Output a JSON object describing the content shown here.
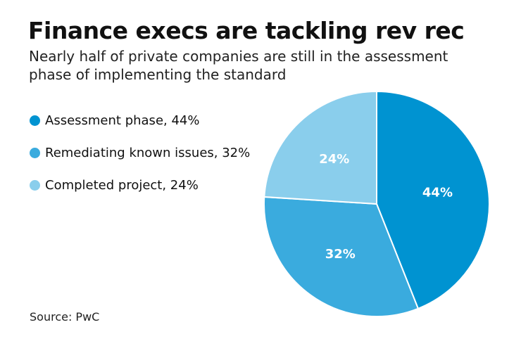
{
  "chart_data": {
    "type": "pie",
    "title": "Finance execs are tackling rev rec",
    "subtitle": "Nearly half of private companies are still in the assessment phase of implementing the standard",
    "categories": [
      "Assessment phase",
      "Remediating known issues",
      "Completed project"
    ],
    "values": [
      44,
      32,
      24
    ],
    "data_labels": [
      "44%",
      "32%",
      "24%"
    ],
    "legend_labels": [
      "Assessment phase, 44%",
      "Remediating known issues, 32%",
      "Completed project, 24%"
    ],
    "colors": [
      "#0093D1",
      "#3AABDE",
      "#8ACEEC"
    ],
    "legend_position": "left",
    "source": "Source: PwC"
  }
}
